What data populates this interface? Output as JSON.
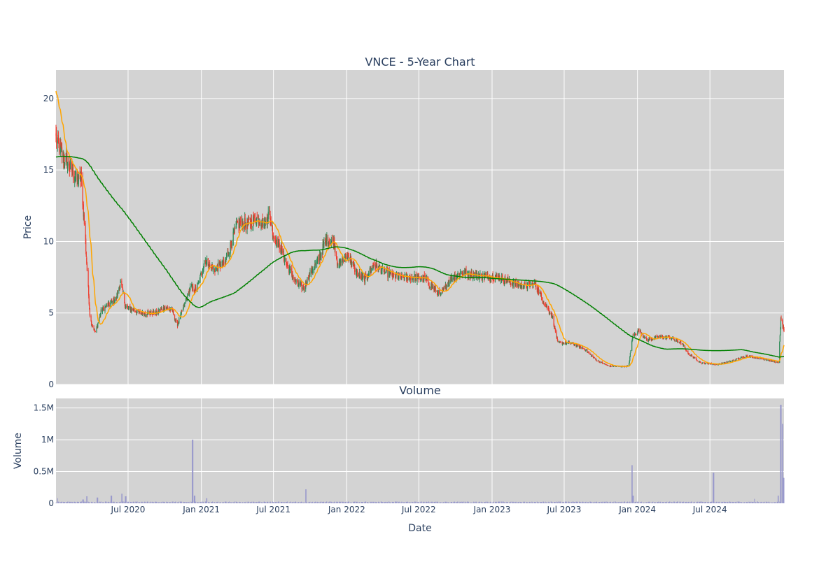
{
  "chart_data": [
    {
      "type": "candlestick",
      "title": "VNCE - 5-Year Chart",
      "ylabel": "Price",
      "ylim": [
        0,
        22
      ],
      "yticks": [
        0,
        5,
        10,
        15,
        20
      ],
      "ytick_labels": [
        "0",
        "5",
        "10",
        "15",
        "20"
      ],
      "grid": true,
      "plot_bg": "#d3d3d3",
      "colors": {
        "up": "#2e8b57",
        "down": "#ef3b2c",
        "ma_short": "#ffa500",
        "ma_long": "#008000"
      },
      "close_anchors": [
        [
          "2020-01-02",
          17.2
        ],
        [
          "2020-01-20",
          16.0
        ],
        [
          "2020-02-10",
          15.0
        ],
        [
          "2020-02-25",
          14.3
        ],
        [
          "2020-03-05",
          14.5
        ],
        [
          "2020-03-15",
          10.5
        ],
        [
          "2020-03-20",
          8.0
        ],
        [
          "2020-03-28",
          4.5
        ],
        [
          "2020-04-10",
          3.6
        ],
        [
          "2020-04-25",
          5.2
        ],
        [
          "2020-05-15",
          5.6
        ],
        [
          "2020-06-01",
          6.0
        ],
        [
          "2020-06-12",
          7.2
        ],
        [
          "2020-06-25",
          5.4
        ],
        [
          "2020-08-01",
          5.0
        ],
        [
          "2020-09-10",
          5.0
        ],
        [
          "2020-10-01",
          5.4
        ],
        [
          "2020-10-20",
          5.2
        ],
        [
          "2020-11-01",
          4.1
        ],
        [
          "2020-11-20",
          5.6
        ],
        [
          "2020-12-05",
          6.8
        ],
        [
          "2020-12-20",
          6.6
        ],
        [
          "2021-01-10",
          8.7
        ],
        [
          "2021-02-01",
          8.0
        ],
        [
          "2021-03-01",
          8.5
        ],
        [
          "2021-04-01",
          11.2
        ],
        [
          "2021-05-01",
          11.3
        ],
        [
          "2021-05-20",
          11.6
        ],
        [
          "2021-06-10",
          11.2
        ],
        [
          "2021-06-20",
          12.1
        ],
        [
          "2021-07-01",
          10.4
        ],
        [
          "2021-07-20",
          9.5
        ],
        [
          "2021-08-05",
          8.3
        ],
        [
          "2021-08-25",
          7.2
        ],
        [
          "2021-09-15",
          6.7
        ],
        [
          "2021-10-01",
          7.8
        ],
        [
          "2021-10-20",
          8.6
        ],
        [
          "2021-11-10",
          10.1
        ],
        [
          "2021-11-30",
          10.0
        ],
        [
          "2021-12-10",
          8.3
        ],
        [
          "2022-01-05",
          9.1
        ],
        [
          "2022-01-25",
          7.8
        ],
        [
          "2022-02-15",
          7.3
        ],
        [
          "2022-03-10",
          8.4
        ],
        [
          "2022-04-10",
          7.8
        ],
        [
          "2022-05-10",
          7.5
        ],
        [
          "2022-06-10",
          7.5
        ],
        [
          "2022-07-15",
          7.4
        ],
        [
          "2022-08-25",
          6.2
        ],
        [
          "2022-09-15",
          7.3
        ],
        [
          "2022-10-15",
          7.8
        ],
        [
          "2022-12-01",
          7.6
        ],
        [
          "2023-01-15",
          7.5
        ],
        [
          "2023-02-20",
          7.1
        ],
        [
          "2023-03-20",
          6.9
        ],
        [
          "2023-04-20",
          7.0
        ],
        [
          "2023-05-10",
          5.8
        ],
        [
          "2023-06-01",
          4.8
        ],
        [
          "2023-06-15",
          2.9
        ],
        [
          "2023-07-15",
          2.9
        ],
        [
          "2023-08-20",
          2.5
        ],
        [
          "2023-09-20",
          1.7
        ],
        [
          "2023-10-20",
          1.3
        ],
        [
          "2023-11-25",
          1.25
        ],
        [
          "2023-12-10",
          1.3
        ],
        [
          "2023-12-20",
          3.4
        ],
        [
          "2024-01-05",
          3.8
        ],
        [
          "2024-01-25",
          3.1
        ],
        [
          "2024-02-20",
          3.3
        ],
        [
          "2024-03-20",
          3.3
        ],
        [
          "2024-04-20",
          2.9
        ],
        [
          "2024-05-10",
          2.1
        ],
        [
          "2024-06-10",
          1.5
        ],
        [
          "2024-07-20",
          1.4
        ],
        [
          "2024-08-20",
          1.6
        ],
        [
          "2024-10-01",
          2.0
        ],
        [
          "2024-11-10",
          1.8
        ],
        [
          "2024-12-10",
          1.6
        ],
        [
          "2024-12-20",
          1.5
        ],
        [
          "2024-12-26",
          4.5
        ],
        [
          "2025-01-03",
          3.8
        ]
      ],
      "x_start": "2020-01-02",
      "x_end": "2025-01-03",
      "x_volatility": 0.035,
      "ma_short_window": 20,
      "ma_long_window": 200,
      "ma_short_start": 20.7,
      "ma_long_start": 15.9
    },
    {
      "type": "bar",
      "title": "Volume",
      "xlabel": "Date",
      "ylabel": "Volume",
      "ylim": [
        0,
        1650000
      ],
      "yticks": [
        0,
        500000,
        1000000,
        1500000
      ],
      "ytick_labels": [
        "0",
        "0.5M",
        "1M",
        "1.5M"
      ],
      "bar_color": "#9999cc",
      "baseline_volume": 20000,
      "spikes": [
        [
          "2020-01-05",
          80000
        ],
        [
          "2020-03-10",
          60000
        ],
        [
          "2020-03-20",
          110000
        ],
        [
          "2020-04-15",
          90000
        ],
        [
          "2020-05-20",
          120000
        ],
        [
          "2020-06-15",
          150000
        ],
        [
          "2020-06-25",
          110000
        ],
        [
          "2020-12-10",
          1000000
        ],
        [
          "2020-12-15",
          120000
        ],
        [
          "2021-01-15",
          80000
        ],
        [
          "2021-09-20",
          220000
        ],
        [
          "2023-12-18",
          600000
        ],
        [
          "2023-12-21",
          120000
        ],
        [
          "2024-07-10",
          480000
        ],
        [
          "2024-10-20",
          70000
        ],
        [
          "2024-12-20",
          120000
        ],
        [
          "2024-12-26",
          1550000
        ],
        [
          "2024-12-30",
          1250000
        ],
        [
          "2025-01-02",
          400000
        ]
      ]
    }
  ],
  "x_axis": {
    "ticks": [
      "2020-07-01",
      "2021-01-01",
      "2021-07-01",
      "2022-01-01",
      "2022-07-01",
      "2023-01-01",
      "2023-07-01",
      "2024-01-01",
      "2024-07-01"
    ],
    "tick_labels": [
      "Jul 2020",
      "Jan 2021",
      "Jul 2021",
      "Jan 2022",
      "Jul 2022",
      "Jan 2023",
      "Jul 2023",
      "Jan 2024",
      "Jul 2024"
    ]
  }
}
